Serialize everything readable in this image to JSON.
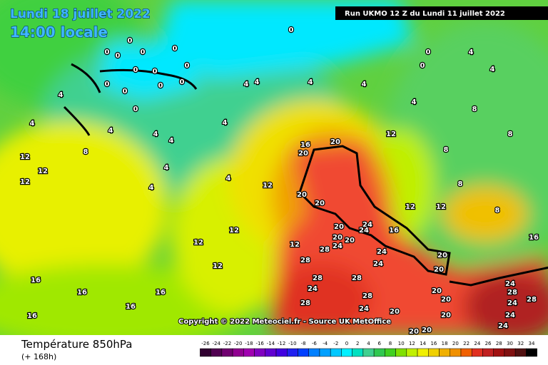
{
  "header": {
    "date": "Lundi 18 juillet 2022",
    "time": "14:00 locale",
    "run": "Run UKMO 12 Z du Lundi 11 juillet 2022"
  },
  "map": {
    "contour_labels": [
      0,
      0,
      0,
      0,
      0,
      0,
      0,
      0,
      0,
      0,
      0,
      0,
      0,
      0,
      0,
      4,
      4,
      4,
      4,
      4,
      4,
      4,
      4,
      4,
      4,
      4,
      4,
      4,
      4,
      4,
      4,
      12,
      8,
      12,
      12,
      12,
      12,
      12,
      12,
      12,
      12,
      12,
      16,
      20,
      20,
      20,
      20,
      20,
      20,
      20,
      24,
      24,
      24,
      24,
      24,
      28,
      28,
      28,
      28,
      28,
      28,
      24,
      24,
      16,
      16,
      8,
      20,
      20,
      20,
      20,
      20,
      20,
      20,
      20,
      24,
      28,
      24,
      24,
      24,
      28,
      16,
      16,
      16,
      16,
      16,
      8,
      8,
      8,
      12,
      8,
      0
    ],
    "copyright": "Copyright © 2022 Meteociel.fr - Source UK MetOffice"
  },
  "legend": {
    "title": "Température 850hPa",
    "subtitle": "(+ 168h)",
    "ticks": [
      -26,
      -24,
      -22,
      -20,
      -18,
      -16,
      -14,
      -12,
      -10,
      -8,
      -6,
      -4,
      -2,
      0,
      2,
      4,
      6,
      8,
      10,
      12,
      14,
      16,
      18,
      20,
      22,
      24,
      26,
      28,
      30,
      32,
      34
    ],
    "colors": [
      "#300030",
      "#500050",
      "#700070",
      "#900090",
      "#a000b0",
      "#8000c0",
      "#6000d0",
      "#4000e0",
      "#2020f0",
      "#0040ff",
      "#0080ff",
      "#00a0ff",
      "#00c8ff",
      "#00f0ff",
      "#00e0c0",
      "#40d090",
      "#30c850",
      "#40d020",
      "#80e000",
      "#c0f000",
      "#f0f000",
      "#f0d000",
      "#f0b000",
      "#f09000",
      "#f06000",
      "#e03020",
      "#c02020",
      "#a01010",
      "#801010",
      "#501010",
      "#000000"
    ]
  }
}
